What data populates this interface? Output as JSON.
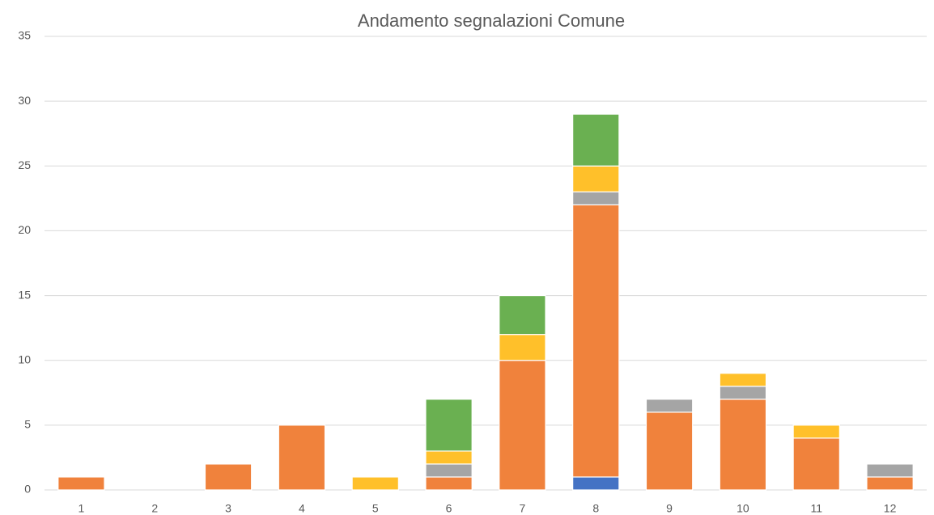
{
  "chart_data": {
    "type": "stacked_bar",
    "title": "Andamento segnalazioni Comune",
    "categories": [
      1,
      2,
      3,
      4,
      5,
      6,
      7,
      8,
      9,
      10,
      11,
      12
    ],
    "series": [
      {
        "color": "#4472c4",
        "values": [
          0,
          0,
          0,
          0,
          0,
          0,
          0,
          1,
          0,
          0,
          0,
          0
        ]
      },
      {
        "color": "#f0823c",
        "values": [
          1,
          0,
          2,
          5,
          0,
          1,
          10,
          21,
          6,
          7,
          4,
          1
        ]
      },
      {
        "color": "#a5a5a5",
        "values": [
          0,
          0,
          0,
          0,
          0,
          1,
          0,
          1,
          1,
          1,
          0,
          1
        ]
      },
      {
        "color": "#ffc02a",
        "values": [
          0,
          0,
          0,
          0,
          1,
          1,
          2,
          2,
          0,
          1,
          1,
          0
        ]
      },
      {
        "color": "#6ab051",
        "values": [
          0,
          0,
          0,
          0,
          0,
          4,
          3,
          4,
          0,
          0,
          0,
          0
        ]
      }
    ],
    "ylim": [
      0,
      35
    ],
    "yticks": [
      0,
      5,
      10,
      15,
      20,
      25,
      30,
      35
    ],
    "grid": true
  }
}
